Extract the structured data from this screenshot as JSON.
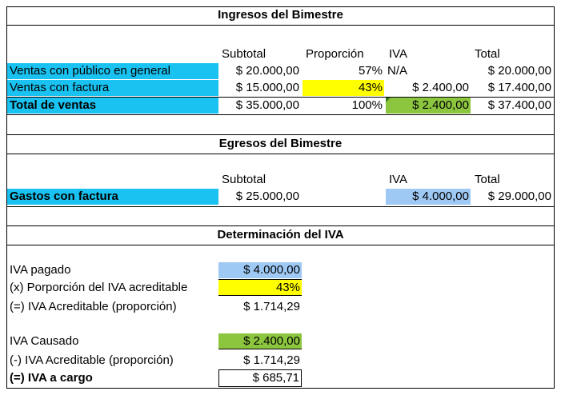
{
  "ingresos": {
    "title": "Ingresos del Bimestre",
    "headers": {
      "subtotal": "Subtotal",
      "proporcion": "Proporción",
      "iva": "IVA",
      "total": "Total"
    },
    "rows": [
      {
        "label": "Ventas con público en general",
        "subtotal": "$ 20.000,00",
        "proporcion": "57%",
        "iva": "N/A",
        "total": "$ 20.000,00"
      },
      {
        "label": "Ventas con factura",
        "subtotal": "$ 15.000,00",
        "proporcion": "43%",
        "iva": "$ 2.400,00",
        "total": "$ 17.400,00"
      }
    ],
    "total_row": {
      "label": "Total de ventas",
      "subtotal": "$ 35.000,00",
      "proporcion": "100%",
      "iva": "$ 2.400,00",
      "total": "$ 37.400,00"
    }
  },
  "egresos": {
    "title": "Egresos del Bimestre",
    "headers": {
      "subtotal": "Subtotal",
      "iva": "IVA",
      "total": "Total"
    },
    "row": {
      "label": "Gastos con factura",
      "subtotal": "$ 25.000,00",
      "iva": "$ 4.000,00",
      "total": "$ 29.000,00"
    }
  },
  "determinacion": {
    "title": "Determinación del IVA",
    "rows": [
      {
        "label": "IVA pagado",
        "value": "$ 4.000,00"
      },
      {
        "label": "(x) Porporción del IVA acreditable",
        "value": "43%"
      },
      {
        "label": "(=) IVA Acreditable (proporción)",
        "value": "$ 1.714,29"
      },
      {
        "label": "IVA Causado",
        "value": "$ 2.400,00"
      },
      {
        "label": "(-) IVA Acreditable (proporción)",
        "value": "$ 1.714,29"
      },
      {
        "label": "(=) IVA a cargo",
        "value": "$ 685,71"
      }
    ]
  },
  "colors": {
    "cyan": "#19c2f0",
    "yellow": "#ffff00",
    "green": "#8cc63f",
    "light_blue": "#9fc9f5"
  }
}
